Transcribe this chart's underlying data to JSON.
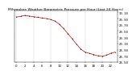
{
  "title": "Milwaukee Weather Barometric Pressure per Hour (Last 24 Hours)",
  "hours": [
    0,
    1,
    2,
    3,
    4,
    5,
    6,
    7,
    8,
    9,
    10,
    11,
    12,
    13,
    14,
    15,
    16,
    17,
    18,
    19,
    20,
    21,
    22,
    23
  ],
  "pressure": [
    29.95,
    29.97,
    30.0,
    29.98,
    29.96,
    29.94,
    29.92,
    29.9,
    29.87,
    29.82,
    29.72,
    29.58,
    29.42,
    29.25,
    29.08,
    28.92,
    28.82,
    28.78,
    28.74,
    28.7,
    28.68,
    28.72,
    28.78,
    28.82
  ],
  "ylim": [
    28.5,
    30.15
  ],
  "yticks": [
    28.5,
    28.7,
    28.9,
    29.1,
    29.3,
    29.5,
    29.7,
    29.9,
    30.1
  ],
  "ytick_labels": [
    "28.50",
    "28.70",
    "28.90",
    "29.10",
    "29.30",
    "29.50",
    "29.70",
    "29.90",
    "30.10"
  ],
  "xlim": [
    -0.5,
    23.5
  ],
  "xtick_positions": [
    0,
    2,
    4,
    6,
    8,
    10,
    12,
    14,
    16,
    18,
    20,
    22
  ],
  "xtick_labels": [
    "0",
    "2",
    "4",
    "6",
    "8",
    "10",
    "12",
    "14",
    "16",
    "18",
    "20",
    "22"
  ],
  "vgrid_positions": [
    0,
    4,
    8,
    12,
    16,
    20
  ],
  "line_color": "#cc0000",
  "marker_color": "#000000",
  "grid_color": "#aaaaaa",
  "bg_color": "#ffffff",
  "title_fontsize": 3.2,
  "axis_fontsize": 2.8
}
